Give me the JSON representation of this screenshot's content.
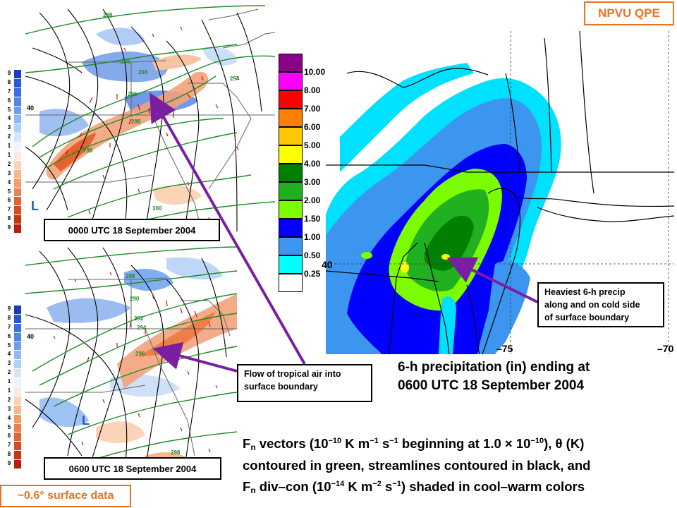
{
  "npvu_label": "NPVU QPE",
  "surface_label": "~0.6° surface data",
  "upper_panel": {
    "time_label": "0000 UTC 18 September 2004",
    "lat_label": "40",
    "low_label": "L",
    "theta_labels": [
      "288",
      "290",
      "294",
      "294",
      "296",
      "298",
      "298",
      "300"
    ]
  },
  "lower_panel": {
    "time_label": "0600 UTC 18 September 2004",
    "lat_label": "40",
    "low_label": "L",
    "theta_labels": [
      "288",
      "290",
      "292",
      "294",
      "296",
      "298"
    ]
  },
  "scale_numbers": [
    "9",
    "8",
    "7",
    "6",
    "5",
    "4",
    "3",
    "2",
    "1",
    "1",
    "2",
    "3",
    "4",
    "5",
    "6",
    "7",
    "8",
    "9"
  ],
  "scale_colors": [
    "#1a3dbf",
    "#2a55d6",
    "#3b6ee0",
    "#4f86e8",
    "#6c9ff0",
    "#8fb8f4",
    "#b3d0f7",
    "#d5e5fa",
    "#eef4fd",
    "#fde9dc",
    "#fbd3b7",
    "#f8b88e",
    "#f39c68",
    "#ee7f47",
    "#e5632e",
    "#d94a1e",
    "#c93414",
    "#b5200c"
  ],
  "precip_legend": {
    "labels": [
      "10.00",
      "8.00",
      "7.00",
      "6.00",
      "5.00",
      "4.00",
      "3.00",
      "2.00",
      "1.50",
      "1.00",
      "0.50",
      "0.25"
    ],
    "colors": [
      "#8b008b",
      "#ff00ff",
      "#ff0000",
      "#ff8000",
      "#ffc800",
      "#ffff00",
      "#008000",
      "#20b020",
      "#7cfc00",
      "#0000ff",
      "#3c96f0",
      "#00ffff",
      "#ffffff"
    ]
  },
  "precip_map": {
    "lat_label": "40",
    "lon_labels": [
      "–75",
      "–70"
    ]
  },
  "annotations": {
    "heaviest": [
      "Heaviest 6-h precip",
      "along and on cold side",
      "of surface boundary"
    ],
    "flow": [
      "Flow of tropical air into",
      "surface boundary"
    ]
  },
  "precip_title": [
    "6-h precipitation (in) ending at",
    "0600 UTC 18 September 2004"
  ],
  "caption": {
    "line1_a": "F",
    "line1_sub": "n",
    "line1_b": " vectors (10",
    "line1_sup1": "−10",
    "line1_c": " K m",
    "line1_sup2": "−1",
    "line1_d": " s",
    "line1_sup3": "−1",
    "line1_e": " beginning at 1.0 × 10",
    "line1_sup4": "−10",
    "line1_f": "), θ (K)",
    "line2": "contoured in green, streamlines contoured in black, and",
    "line3_a": "F",
    "line3_sub": "n",
    "line3_b": " div–con (10",
    "line3_sup1": "−14",
    "line3_c": " K m",
    "line3_sup2": "−2",
    "line3_d": " s",
    "line3_sup3": "−1",
    "line3_e": ") shaded in cool–warm colors"
  }
}
